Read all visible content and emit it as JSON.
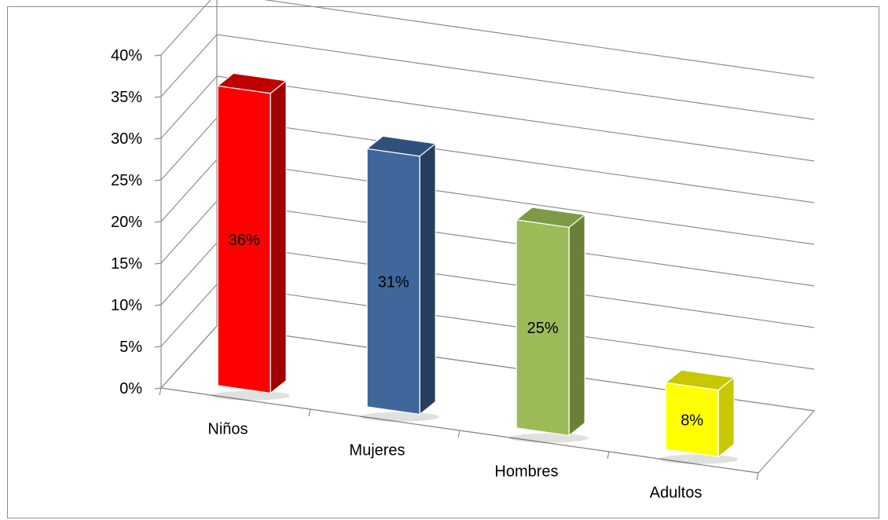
{
  "chart_data": {
    "type": "bar",
    "style": "3d-column",
    "categories": [
      "Niños",
      "Mujeres",
      "Hombres",
      "Adultos"
    ],
    "values": [
      36,
      31,
      25,
      8
    ],
    "data_labels": [
      "36%",
      "31%",
      "25%",
      "8%"
    ],
    "y_ticks": [
      "0%",
      "5%",
      "10%",
      "15%",
      "20%",
      "25%",
      "30%",
      "35%",
      "40%"
    ],
    "ylim": [
      0,
      40
    ],
    "grid": true,
    "legend": "none",
    "colors": [
      {
        "front": "#ff0000",
        "side": "#a00000",
        "top": "#c00000"
      },
      {
        "front": "#3f679c",
        "side": "#263f60",
        "top": "#30507c"
      },
      {
        "front": "#9bbb59",
        "side": "#6a8036",
        "top": "#7f9a45"
      },
      {
        "front": "#ffff00",
        "side": "#c8c800",
        "top": "#c8c800"
      }
    ]
  }
}
